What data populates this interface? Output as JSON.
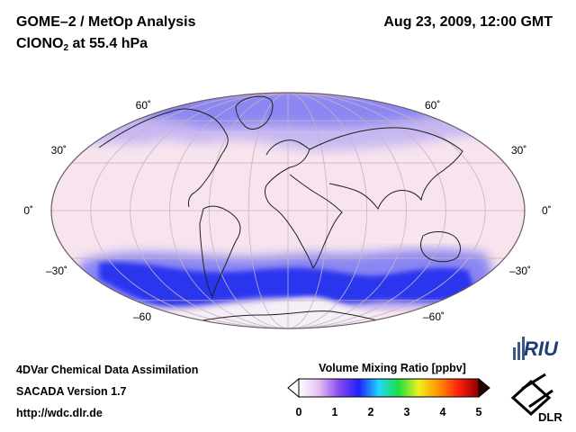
{
  "header": {
    "title_left": "GOME–2 / MetOp Analysis",
    "datetime": "Aug 23, 2009, 12:00 GMT",
    "species_prefix": "ClONO",
    "species_sub": "2",
    "species_suffix": " at 55.4 hPa"
  },
  "map": {
    "projection": "Mollweide",
    "latitude_labels_left": [
      "60˚",
      "30˚",
      "0˚",
      "–30˚",
      "–60"
    ],
    "latitude_labels_right": [
      "60˚",
      "30˚",
      "0˚",
      "–30˚",
      "–60˚"
    ],
    "colors": {
      "background": "#f7e4ee",
      "band_high": "#2a36ee",
      "band_mid": "#8b86f2",
      "band_low": "#c7b8f2"
    }
  },
  "footer": {
    "line1": "4DVar Chemical Data Assimilation",
    "line2": "SACADA Version 1.7",
    "line3": "http://wdc.dlr.de"
  },
  "colorbar": {
    "title": "Volume Mixing Ratio [ppbv]",
    "min": 0,
    "max": 5,
    "ticks": [
      "0",
      "1",
      "2",
      "3",
      "4",
      "5"
    ],
    "colors": [
      "#ffffff",
      "#e6c0f0",
      "#8a4cf0",
      "#2020ff",
      "#20d8ff",
      "#20e040",
      "#f0f020",
      "#ff9000",
      "#ff2010",
      "#8a0000"
    ]
  },
  "logos": {
    "riu": "RIU",
    "dlr": "DLR"
  }
}
